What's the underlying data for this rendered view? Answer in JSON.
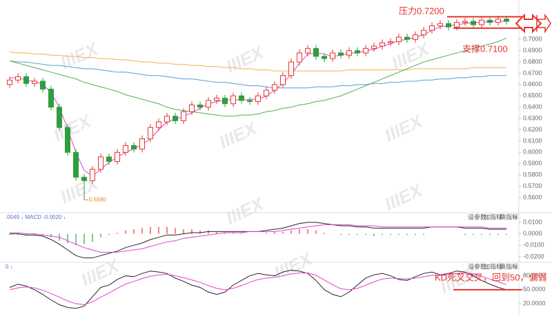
{
  "watermark": "IIIEX",
  "chart_data": [
    {
      "type": "candlestick",
      "open": [
        0.66,
        0.664,
        0.667,
        0.661,
        0.663,
        0.656,
        0.64,
        0.622,
        0.6,
        0.578,
        0.575,
        0.585,
        0.596,
        0.592,
        0.6,
        0.606,
        0.603,
        0.612,
        0.622,
        0.627,
        0.632,
        0.628,
        0.636,
        0.642,
        0.64,
        0.646,
        0.648,
        0.643,
        0.65,
        0.646,
        0.645,
        0.65,
        0.655,
        0.66,
        0.668,
        0.68,
        0.688,
        0.692,
        0.685,
        0.683,
        0.688,
        0.686,
        0.69,
        0.688,
        0.692,
        0.694,
        0.697,
        0.698,
        0.702,
        0.7,
        0.704,
        0.708,
        0.712,
        0.714,
        0.711,
        0.715,
        0.716,
        0.713,
        0.717,
        0.715,
        0.718
      ],
      "high": [
        0.667,
        0.67,
        0.67,
        0.666,
        0.666,
        0.659,
        0.643,
        0.625,
        0.603,
        0.581,
        0.588,
        0.599,
        0.599,
        0.603,
        0.609,
        0.609,
        0.615,
        0.625,
        0.63,
        0.635,
        0.635,
        0.639,
        0.645,
        0.645,
        0.649,
        0.651,
        0.651,
        0.653,
        0.653,
        0.649,
        0.653,
        0.658,
        0.663,
        0.671,
        0.683,
        0.691,
        0.695,
        0.695,
        0.688,
        0.691,
        0.691,
        0.693,
        0.693,
        0.695,
        0.697,
        0.7,
        0.701,
        0.705,
        0.705,
        0.707,
        0.711,
        0.715,
        0.717,
        0.717,
        0.718,
        0.719,
        0.719,
        0.72,
        0.72,
        0.721,
        0.721
      ],
      "low": [
        0.657,
        0.661,
        0.658,
        0.658,
        0.653,
        0.637,
        0.619,
        0.597,
        0.575,
        0.558,
        0.572,
        0.582,
        0.589,
        0.589,
        0.597,
        0.6,
        0.6,
        0.609,
        0.619,
        0.624,
        0.625,
        0.625,
        0.633,
        0.637,
        0.637,
        0.643,
        0.64,
        0.64,
        0.643,
        0.642,
        0.642,
        0.647,
        0.652,
        0.657,
        0.665,
        0.677,
        0.685,
        0.682,
        0.68,
        0.68,
        0.683,
        0.683,
        0.685,
        0.685,
        0.689,
        0.691,
        0.694,
        0.695,
        0.697,
        0.697,
        0.701,
        0.705,
        0.709,
        0.708,
        0.708,
        0.712,
        0.71,
        0.71,
        0.712,
        0.712,
        0.713
      ],
      "close": [
        0.664,
        0.667,
        0.661,
        0.663,
        0.656,
        0.64,
        0.622,
        0.6,
        0.578,
        0.575,
        0.585,
        0.596,
        0.592,
        0.6,
        0.606,
        0.603,
        0.612,
        0.622,
        0.627,
        0.632,
        0.628,
        0.636,
        0.642,
        0.64,
        0.646,
        0.648,
        0.643,
        0.65,
        0.646,
        0.645,
        0.65,
        0.655,
        0.66,
        0.668,
        0.68,
        0.688,
        0.692,
        0.685,
        0.683,
        0.688,
        0.686,
        0.69,
        0.688,
        0.692,
        0.694,
        0.697,
        0.698,
        0.702,
        0.7,
        0.704,
        0.708,
        0.712,
        0.714,
        0.711,
        0.715,
        0.716,
        0.713,
        0.717,
        0.715,
        0.718,
        0.716
      ],
      "up_color": "#e8322b",
      "down_color": "#2e9e3e",
      "low_label": "0.5580",
      "series": [
        {
          "color": "#f2b24a",
          "values": [
            0.689,
            0.688,
            0.688,
            0.687,
            0.687,
            0.686,
            0.686,
            0.685,
            0.685,
            0.684,
            0.684,
            0.683,
            0.683,
            0.682,
            0.682,
            0.681,
            0.68,
            0.68,
            0.679,
            0.679,
            0.678,
            0.678,
            0.677,
            0.677,
            0.676,
            0.676,
            0.675,
            0.675,
            0.674,
            0.674,
            0.673,
            0.673,
            0.672,
            0.672,
            0.672,
            0.672,
            0.672,
            0.672,
            0.672,
            0.672,
            0.672,
            0.673,
            0.673,
            0.673,
            0.673,
            0.673,
            0.673,
            0.673,
            0.673,
            0.674,
            0.674,
            0.674,
            0.674,
            0.674,
            0.674,
            0.674,
            0.675,
            0.675,
            0.675,
            0.675,
            0.675
          ]
        },
        {
          "color": "#5b9bd5",
          "values": [
            0.681,
            0.68,
            0.68,
            0.679,
            0.678,
            0.677,
            0.677,
            0.676,
            0.675,
            0.674,
            0.674,
            0.673,
            0.672,
            0.671,
            0.671,
            0.67,
            0.669,
            0.668,
            0.668,
            0.667,
            0.666,
            0.665,
            0.665,
            0.664,
            0.663,
            0.662,
            0.662,
            0.661,
            0.66,
            0.659,
            0.659,
            0.658,
            0.657,
            0.657,
            0.657,
            0.657,
            0.657,
            0.658,
            0.658,
            0.658,
            0.659,
            0.659,
            0.66,
            0.66,
            0.661,
            0.661,
            0.662,
            0.662,
            0.663,
            0.663,
            0.664,
            0.664,
            0.665,
            0.665,
            0.666,
            0.666,
            0.667,
            0.667,
            0.668,
            0.668,
            0.668
          ]
        },
        {
          "color": "#4caf50",
          "values": [
            0.681,
            0.679,
            0.677,
            0.675,
            0.673,
            0.671,
            0.669,
            0.667,
            0.665,
            0.662,
            0.66,
            0.658,
            0.656,
            0.654,
            0.651,
            0.649,
            0.647,
            0.645,
            0.643,
            0.64,
            0.638,
            0.637,
            0.636,
            0.635,
            0.634,
            0.633,
            0.632,
            0.632,
            0.633,
            0.633,
            0.634,
            0.636,
            0.637,
            0.639,
            0.64,
            0.642,
            0.643,
            0.645,
            0.646,
            0.648,
            0.65,
            0.653,
            0.656,
            0.659,
            0.662,
            0.665,
            0.668,
            0.671,
            0.674,
            0.677,
            0.68,
            0.682,
            0.684,
            0.686,
            0.688,
            0.69,
            0.692,
            0.694,
            0.696,
            0.698,
            0.701
          ]
        },
        {
          "color": "#e040d0",
          "values": [
            0.666,
            0.666,
            0.664,
            0.663,
            0.66,
            0.653,
            0.64,
            0.621,
            0.6,
            0.584,
            0.579,
            0.585,
            0.591,
            0.596,
            0.6,
            0.603,
            0.607,
            0.612,
            0.62,
            0.627,
            0.629,
            0.632,
            0.635,
            0.639,
            0.643,
            0.645,
            0.646,
            0.647,
            0.646,
            0.647,
            0.647,
            0.65,
            0.655,
            0.661,
            0.669,
            0.679,
            0.687,
            0.688,
            0.687,
            0.685,
            0.686,
            0.688,
            0.688,
            0.69,
            0.691,
            0.694,
            0.696,
            0.699,
            0.7,
            0.702,
            0.704,
            0.708,
            0.711,
            0.712,
            0.713,
            0.714,
            0.715,
            0.715,
            0.716,
            0.716,
            0.716
          ]
        }
      ],
      "annotations": [
        {
          "text": "压力0.7200",
          "value": 0.72
        },
        {
          "text": "支撑0.7100",
          "value": 0.71
        }
      ],
      "ylim": [
        0.549,
        0.73
      ],
      "yticks": [
        {
          "value": 0.56,
          "label": "0.5600"
        },
        {
          "value": 0.57,
          "label": "0.5700"
        },
        {
          "value": 0.58,
          "label": "0.5800"
        },
        {
          "value": 0.59,
          "label": "0.5900"
        },
        {
          "value": 0.6,
          "label": "0.6000"
        },
        {
          "value": 0.61,
          "label": "0.6100"
        },
        {
          "value": 0.62,
          "label": "0.6200"
        },
        {
          "value": 0.63,
          "label": "0.6300"
        },
        {
          "value": 0.64,
          "label": "0.6400"
        },
        {
          "value": 0.65,
          "label": "0.6500"
        },
        {
          "value": 0.66,
          "label": "0.6600"
        },
        {
          "value": 0.67,
          "label": "0.6700"
        },
        {
          "value": 0.68,
          "label": "0.6800"
        },
        {
          "value": 0.69,
          "label": "0.6900"
        },
        {
          "value": 0.7,
          "label": "0.7000"
        }
      ]
    },
    {
      "type": "macd",
      "header": ".0049 ↓ MACD -0.0020 ↓",
      "buttons": [
        "设参数",
        "加指标",
        "换指标",
        "×"
      ],
      "values": [
        -0.001,
        -0.001,
        -0.001,
        -0.001,
        -0.001,
        -0.003,
        -0.006,
        -0.008,
        -0.01,
        -0.009,
        -0.007,
        -0.003,
        -0.001,
        0.001,
        0.003,
        0.004,
        0.005,
        0.006,
        0.006,
        0.006,
        0.005,
        0.004,
        0.004,
        0.003,
        0.003,
        0.002,
        0.001,
        0.001,
        0.001,
        0.0,
        0.0,
        0.001,
        0.002,
        0.002,
        0.003,
        0.004,
        0.004,
        0.003,
        0.001,
        0.0,
        -0.001,
        -0.001,
        -0.001,
        -0.001,
        -0.002,
        -0.001,
        -0.001,
        -0.001,
        -0.001,
        -0.001,
        -0.001,
        0.0,
        0.0,
        0.0,
        0.0,
        -0.001,
        -0.001,
        -0.001,
        -0.001,
        -0.001,
        -0.001
      ],
      "up_color": "#e8322b",
      "down_color": "#2e9e3e",
      "series": [
        {
          "color": "#222222",
          "values": [
            0.0,
            0.0,
            -0.001,
            -0.001,
            -0.002,
            -0.005,
            -0.009,
            -0.014,
            -0.019,
            -0.021,
            -0.021,
            -0.019,
            -0.017,
            -0.015,
            -0.012,
            -0.01,
            -0.008,
            -0.005,
            -0.003,
            -0.001,
            -0.001,
            0.0,
            0.001,
            0.001,
            0.002,
            0.002,
            0.002,
            0.002,
            0.002,
            0.002,
            0.002,
            0.003,
            0.004,
            0.005,
            0.007,
            0.009,
            0.01,
            0.01,
            0.009,
            0.008,
            0.007,
            0.007,
            0.006,
            0.006,
            0.005,
            0.005,
            0.005,
            0.005,
            0.005,
            0.005,
            0.005,
            0.006,
            0.006,
            0.006,
            0.006,
            0.005,
            0.005,
            0.005,
            0.004,
            0.004,
            0.004
          ]
        },
        {
          "color": "#e040d0",
          "values": [
            0.001,
            0.001,
            0.0,
            0.0,
            -0.001,
            -0.002,
            -0.003,
            -0.006,
            -0.009,
            -0.012,
            -0.014,
            -0.016,
            -0.016,
            -0.016,
            -0.015,
            -0.014,
            -0.013,
            -0.011,
            -0.009,
            -0.007,
            -0.006,
            -0.004,
            -0.003,
            -0.002,
            -0.001,
            0.0,
            0.001,
            0.001,
            0.001,
            0.002,
            0.002,
            0.002,
            0.002,
            0.003,
            0.004,
            0.005,
            0.006,
            0.007,
            0.008,
            0.008,
            0.008,
            0.008,
            0.007,
            0.007,
            0.007,
            0.006,
            0.006,
            0.006,
            0.006,
            0.006,
            0.006,
            0.006,
            0.006,
            0.006,
            0.006,
            0.006,
            0.006,
            0.006,
            0.005,
            0.005,
            0.005
          ]
        }
      ],
      "ylim": [
        -0.023,
        0.016
      ],
      "yticks": [
        {
          "value": 0.01,
          "label": "0.0100"
        },
        {
          "value": 0,
          "label": "0.0000"
        },
        {
          "value": -0.01,
          "label": "-0.0100"
        },
        {
          "value": -0.02,
          "label": "-0.0200"
        }
      ]
    },
    {
      "type": "line",
      "header": "0 ↓",
      "buttons": [
        "设参数",
        "加指标",
        "换指标",
        "×"
      ],
      "series": [
        {
          "color": "#222222",
          "values": [
            55,
            62,
            58,
            50,
            40,
            28,
            18,
            12,
            10,
            15,
            35,
            55,
            60,
            72,
            80,
            78,
            85,
            90,
            88,
            85,
            75,
            68,
            60,
            55,
            45,
            40,
            45,
            60,
            70,
            80,
            85,
            82,
            80,
            88,
            92,
            90,
            85,
            70,
            50,
            40,
            35,
            45,
            60,
            75,
            82,
            85,
            80,
            72,
            70,
            78,
            85,
            88,
            82,
            85,
            90,
            88,
            80,
            70,
            62,
            55,
            50
          ]
        },
        {
          "color": "#e040d0",
          "values": [
            50,
            54,
            56,
            54,
            49,
            42,
            34,
            26,
            20,
            18,
            24,
            34,
            43,
            53,
            62,
            68,
            74,
            79,
            82,
            83,
            80,
            76,
            71,
            66,
            59,
            53,
            50,
            53,
            59,
            66,
            72,
            75,
            77,
            80,
            84,
            86,
            86,
            81,
            71,
            61,
            52,
            50,
            53,
            60,
            67,
            73,
            75,
            74,
            73,
            75,
            78,
            81,
            81,
            82,
            85,
            86,
            84,
            79,
            73,
            67,
            61
          ]
        }
      ],
      "annotations": [
        {
          "text": "KD死叉交叉，回到50，偏弱",
          "value": 50
        }
      ],
      "ylim": [
        4,
        103
      ],
      "yticks": [
        {
          "value": 80,
          "label": "80.0000"
        },
        {
          "value": 50,
          "label": "50.0000"
        },
        {
          "value": 20,
          "label": "20.0000"
        }
      ]
    }
  ]
}
